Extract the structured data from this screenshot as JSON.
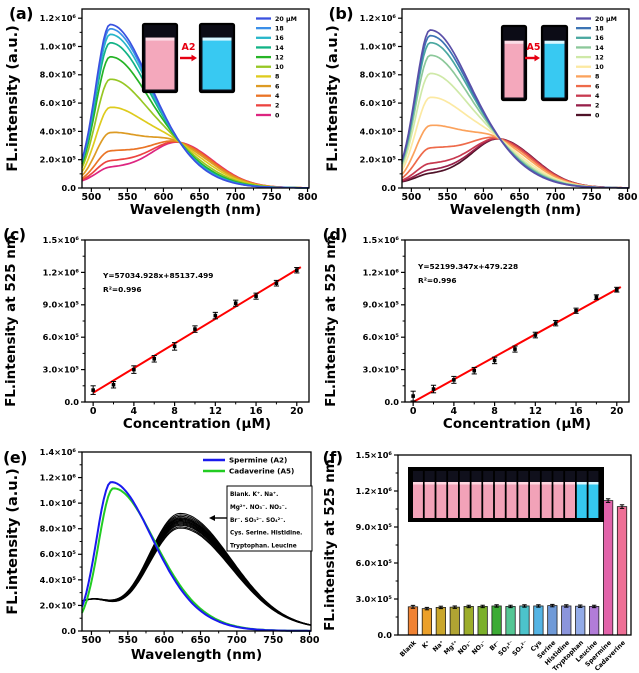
{
  "figure": {
    "background": "#ffffff"
  },
  "panel_labels": {
    "a": "(a)",
    "b": "(b)",
    "c": "(c)",
    "d": "(d)",
    "e": "(e)",
    "f": "(f)"
  },
  "chart_data": [
    {
      "panel": "a",
      "type": "line",
      "title": "",
      "xlabel": "Wavelength (nm)",
      "ylabel": "FL.intensity (a.u.)",
      "xlim": [
        487,
        802
      ],
      "ylim": [
        0,
        1265000
      ],
      "xticks": [
        500,
        550,
        600,
        650,
        700,
        750,
        800
      ],
      "ytick_values": [
        0,
        200000,
        400000,
        600000,
        800000,
        1000000,
        1200000
      ],
      "ytick_labels": [
        "0.0",
        "2.0×10⁵",
        "4.0×10⁵",
        "6.0×10⁵",
        "8.0×10⁵",
        "1.0×10⁶",
        "1.2×10⁶"
      ],
      "legend_position": "top-right",
      "cross_intensity_at_623": 305000,
      "series": [
        {
          "label": "20 μM",
          "color": "#3a52e0",
          "i525": 1120000
        },
        {
          "label": "18",
          "color": "#3b8fe8",
          "i525": 1090000
        },
        {
          "label": "16",
          "color": "#28b6c9",
          "i525": 1050000
        },
        {
          "label": "14",
          "color": "#12b386",
          "i525": 990000
        },
        {
          "label": "12",
          "color": "#26b426",
          "i525": 890000
        },
        {
          "label": "10",
          "color": "#97c724",
          "i525": 730000
        },
        {
          "label": "8",
          "color": "#decb1d",
          "i525": 530000
        },
        {
          "label": "6",
          "color": "#dd9b24",
          "i525": 350000
        },
        {
          "label": "4",
          "color": "#ea7426",
          "i525": 220000
        },
        {
          "label": "2",
          "color": "#ec4440",
          "i525": 150000
        },
        {
          "label": "0",
          "color": "#dd2580",
          "i525": 105000
        }
      ],
      "inset": {
        "kind": "cuvette-pair",
        "cuvette_colors": [
          "#f4a8bc",
          "#38c9f2"
        ],
        "gloss_colors": [
          "#fbdce6",
          "#d8f6ff"
        ],
        "arrow_label": "A2",
        "arrow_color": "#e60012"
      }
    },
    {
      "panel": "b",
      "type": "line",
      "title": "",
      "xlabel": "Wavelength (nm)",
      "ylabel": "FL.intensity (a.u.)",
      "xlim": [
        487,
        802
      ],
      "ylim": [
        0,
        1265000
      ],
      "xticks": [
        500,
        550,
        600,
        650,
        700,
        750,
        800
      ],
      "ytick_values": [
        0,
        200000,
        400000,
        600000,
        800000,
        1000000,
        1200000
      ],
      "ytick_labels": [
        "0.0",
        "2.0×10⁵",
        "4.0×10⁵",
        "6.0×10⁵",
        "8.0×10⁵",
        "1.0×10⁶",
        "1.2×10⁶"
      ],
      "legend_position": "top-right",
      "cross_intensity_at_623": 330000,
      "series": [
        {
          "label": "20 μM",
          "color": "#5a4fa8",
          "i525": 1080000
        },
        {
          "label": "18",
          "color": "#3c74b4",
          "i525": 1040000
        },
        {
          "label": "16",
          "color": "#4aa8a0",
          "i525": 990000
        },
        {
          "label": "14",
          "color": "#8cc89a",
          "i525": 900000
        },
        {
          "label": "12",
          "color": "#cfe9a8",
          "i525": 770000
        },
        {
          "label": "10",
          "color": "#fce9a2",
          "i525": 600000
        },
        {
          "label": "8",
          "color": "#fba25c",
          "i525": 400000
        },
        {
          "label": "6",
          "color": "#ee6a4a",
          "i525": 240000
        },
        {
          "label": "4",
          "color": "#c83a50",
          "i525": 130000
        },
        {
          "label": "2",
          "color": "#97204a",
          "i525": 85000
        },
        {
          "label": "0",
          "color": "#4f1228",
          "i525": 60000
        }
      ],
      "inset": {
        "kind": "cuvette-pair",
        "cuvette_colors": [
          "#f4a8bc",
          "#38c9f2"
        ],
        "gloss_colors": [
          "#fbdce6",
          "#d8f6ff"
        ],
        "arrow_label": "A5",
        "arrow_color": "#e60012"
      }
    },
    {
      "panel": "c",
      "type": "scatter",
      "xlabel": "Concentration (μM)",
      "ylabel": "FL.intensity at 525 nm",
      "xlim": [
        -0.8,
        21.2
      ],
      "ylim": [
        0,
        1500000
      ],
      "xticks": [
        0,
        4,
        8,
        12,
        16,
        20
      ],
      "ytick_values": [
        0,
        300000,
        600000,
        900000,
        1200000,
        1500000
      ],
      "ytick_labels": [
        "0.0",
        "3.0×10⁵",
        "6.0×10⁵",
        "9.0×10⁵",
        "1.2×10⁶",
        "1.5×10⁶"
      ],
      "equation": "Y=57034.928x+85137.499",
      "r_squared": "R²=0.996",
      "fit": {
        "slope": 57034.928,
        "intercept": 85137.499,
        "color": "#fe0000"
      },
      "x": [
        0,
        2,
        4,
        6,
        8,
        10,
        12,
        14,
        16,
        18,
        20
      ],
      "y": [
        110000,
        160000,
        300000,
        400000,
        515000,
        675000,
        800000,
        915000,
        980000,
        1100000,
        1220000
      ],
      "yerr": [
        40000,
        30000,
        35000,
        30000,
        35000,
        30000,
        30000,
        28000,
        28000,
        26000,
        25000
      ]
    },
    {
      "panel": "d",
      "type": "scatter",
      "xlabel": "Concentration (μM)",
      "ylabel": "FL.intensity at 525 nm",
      "xlim": [
        -0.8,
        21.2
      ],
      "ylim": [
        0,
        1500000
      ],
      "xticks": [
        0,
        4,
        8,
        12,
        16,
        20
      ],
      "ytick_values": [
        0,
        300000,
        600000,
        900000,
        1200000,
        1500000
      ],
      "ytick_labels": [
        "0.0",
        "3.0×10⁵",
        "6.0×10⁵",
        "9.0×10⁵",
        "1.2×10⁶",
        "1.5×10⁶"
      ],
      "equation": "Y=52199.347x+479.228",
      "r_squared": "R²=0.996",
      "fit": {
        "slope": 52199.347,
        "intercept": 479.228,
        "color": "#fe0000"
      },
      "x": [
        0,
        2,
        4,
        6,
        8,
        10,
        12,
        14,
        16,
        18,
        20
      ],
      "y": [
        55000,
        120000,
        205000,
        290000,
        385000,
        490000,
        620000,
        730000,
        845000,
        970000,
        1040000
      ],
      "yerr": [
        45000,
        35000,
        32000,
        30000,
        30000,
        28000,
        26000,
        25000,
        24000,
        22000,
        22000
      ]
    },
    {
      "panel": "e",
      "type": "line",
      "xlabel": "Wavelength (nm)",
      "ylabel": "FL.intensity (a.u.)",
      "xlim": [
        487,
        802
      ],
      "ylim": [
        0,
        1400000
      ],
      "xticks": [
        500,
        550,
        600,
        650,
        700,
        750,
        800
      ],
      "ytick_values": [
        0,
        200000,
        400000,
        600000,
        800000,
        1000000,
        1200000,
        1400000
      ],
      "ytick_labels": [
        "0.0",
        "2.0×10⁵",
        "4.0×10⁵",
        "6.0×10⁵",
        "8.0×10⁵",
        "1.0×10⁶",
        "1.2×10⁶",
        "1.4×10⁶"
      ],
      "cross_intensity_at_623": 300000,
      "series": [
        {
          "label": "Spermine (A2)",
          "color": "#1a1aee",
          "i525": 1130000,
          "center": 527
        },
        {
          "label": "Cadaverine (A5)",
          "color": "#22cc22",
          "i525": 1080000,
          "center": 530
        }
      ],
      "interferents": {
        "color": "#000000",
        "peak620": [
          905000,
          893000,
          882000,
          872000,
          865000,
          858000,
          850000,
          843000,
          836000,
          828000,
          820000,
          812000,
          800000,
          790000
        ],
        "box_lines": [
          "Blank. K⁺. Na⁺.",
          "Mg²⁺. NO₃⁻. NO₂⁻.",
          "Br⁻. SO₃²⁻. SO₄²⁻.",
          "Cys. Serine. Histidine.",
          "Tryptophan. Leucine"
        ]
      }
    },
    {
      "panel": "f",
      "type": "bar",
      "xlabel": "",
      "ylabel": "FL.intensity at 525 nm",
      "ylim": [
        0,
        1500000
      ],
      "ytick_values": [
        0,
        300000,
        600000,
        900000,
        1200000,
        1500000
      ],
      "ytick_labels": [
        "0.0",
        "3.0×10⁵",
        "6.0×10⁵",
        "9.0×10⁵",
        "1.2×10⁶",
        "1.5×10⁶"
      ],
      "categories": [
        "Blank",
        "K⁺",
        "Na⁺",
        "Mg²⁺",
        "NO₃⁻",
        "NO₂⁻",
        "Br⁻",
        "SO₃²⁻",
        "SO₄²⁻",
        "Cys",
        "Serine",
        "Histidine",
        "Tryptophan",
        "Leucine",
        "Spermine",
        "Cadaverine"
      ],
      "values": [
        235000,
        220000,
        230000,
        232000,
        238000,
        238000,
        242000,
        238000,
        242000,
        242000,
        245000,
        242000,
        240000,
        238000,
        1120000,
        1070000
      ],
      "errors": [
        12000,
        10000,
        10000,
        10000,
        10000,
        10000,
        10000,
        10000,
        10000,
        10000,
        10000,
        10000,
        10000,
        10000,
        15000,
        15000
      ],
      "colors": [
        "#f08232",
        "#eba02a",
        "#c9a62c",
        "#b1a433",
        "#9cad2a",
        "#7bb02b",
        "#3cab35",
        "#55c795",
        "#4cc3cb",
        "#54b4e4",
        "#6f9ad8",
        "#8b95dc",
        "#93abe8",
        "#b27cd8",
        "#e263aa",
        "#ef6f96"
      ],
      "inset": {
        "kind": "cuvette-row",
        "background": "#000000",
        "cuvette_colors": [
          "#f2a2b8",
          "#f2a2b8",
          "#f2a2b8",
          "#f2a2b8",
          "#f2a2b8",
          "#f2a2b8",
          "#f2a2b8",
          "#f2a2b8",
          "#f2a2b8",
          "#f2a2b8",
          "#f2a2b8",
          "#f2a2b8",
          "#f2a2b8",
          "#f2a2b8",
          "#35c8f0",
          "#35c8f0"
        ],
        "gloss_pink": "#ffd6e0",
        "gloss_cyan": "#d8f6ff",
        "cap_color": "#10101c"
      }
    }
  ]
}
